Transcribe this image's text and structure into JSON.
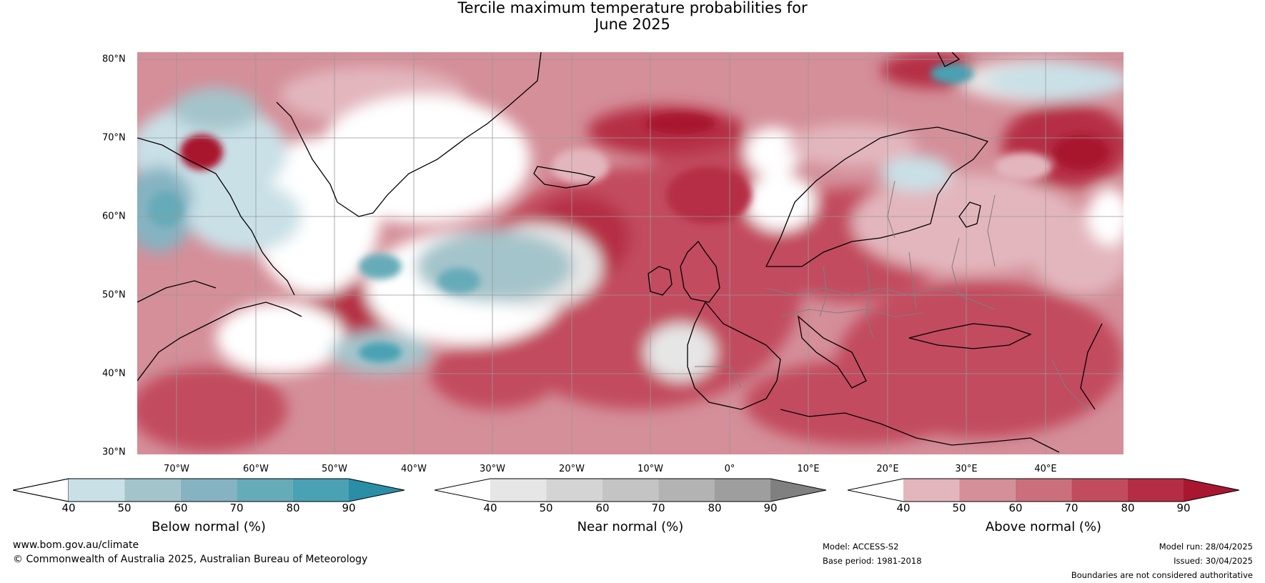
{
  "title": {
    "line1": "Tercile maximum temperature probabilities for",
    "line2": "June 2025"
  },
  "map": {
    "latitude_labels": [
      "80°N",
      "70°N",
      "60°N",
      "50°N",
      "40°N",
      "30°N"
    ],
    "longitude_labels": [
      "70°W",
      "60°W",
      "50°W",
      "40°W",
      "30°W",
      "20°W",
      "10°W",
      "0°",
      "10°E",
      "20°E",
      "30°E",
      "40°E"
    ]
  },
  "colorbars": [
    {
      "label": "Below normal (%)",
      "ticks": [
        "40",
        "50",
        "60",
        "70",
        "80",
        "90"
      ],
      "colors": [
        "#ffffff",
        "#c9e0e7",
        "#a4c4cb",
        "#85b3c2",
        "#66abb8",
        "#4aa1b3",
        "#2a8ea7"
      ]
    },
    {
      "label": "Near normal (%)",
      "ticks": [
        "40",
        "50",
        "60",
        "70",
        "80",
        "90"
      ],
      "colors": [
        "#ffffff",
        "#e6e6e6",
        "#d4d4d4",
        "#c4c4c4",
        "#b3b3b3",
        "#9e9e9e",
        "#808080"
      ]
    },
    {
      "label": "Above normal (%)",
      "ticks": [
        "40",
        "50",
        "60",
        "70",
        "80",
        "90"
      ],
      "colors": [
        "#ffffff",
        "#e3b6bd",
        "#d48f99",
        "#cb6f7c",
        "#c24c5e",
        "#b52d44",
        "#a8172f"
      ]
    }
  ],
  "footer": {
    "website": "www.bom.gov.au/climate",
    "copyright": "© Commonwealth of Australia 2025, Australian Bureau of Meteorology",
    "model": "Model: ACCESS-S2",
    "base_period": "Base period: 1981-2018",
    "model_run": "Model run: 28/04/2025",
    "issued": "Issued: 30/04/2025",
    "disclaimer": "Boundaries are not considered authoritative"
  }
}
